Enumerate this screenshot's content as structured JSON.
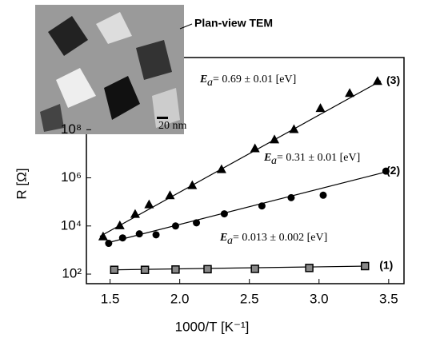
{
  "chart_data": {
    "type": "scatter",
    "inset_label": "Plan-view TEM",
    "inset_scale": "20 nm",
    "xlabel": "1000/T [K⁻¹]",
    "ylabel": "R [Ω]",
    "xlim": [
      1.33,
      3.61
    ],
    "xticks": [
      1.5,
      {
        "value": 2,
        "label": "2.0"
      },
      2.5,
      {
        "value": 3,
        "label": "3.0"
      },
      3.5
    ],
    "ylim": [
      40,
      100000000000
    ],
    "log_y": true,
    "yticks": [
      {
        "value": 100,
        "label": "10²"
      },
      {
        "value": 10000,
        "label": "10⁴"
      },
      {
        "value": 1000000,
        "label": "10⁶"
      },
      {
        "value": 100000000,
        "label": "10⁸"
      }
    ],
    "series": [
      {
        "name": "(3)",
        "marker": "triangle",
        "color": "#000000",
        "x": [
          1.45,
          1.57,
          1.68,
          1.78,
          1.93,
          2.09,
          2.3,
          2.54,
          2.68,
          2.82,
          3.01,
          3.22,
          3.42
        ],
        "values": [
          3700,
          10700,
          32000,
          80000,
          190000,
          500000,
          2300000,
          17000000,
          40000000,
          107000000,
          800000000,
          3400000000,
          10700000000
        ],
        "annotation": "= 0.69 ± 0.01 [eV]"
      },
      {
        "name": "(2)",
        "marker": "circle",
        "color": "#000000",
        "x": [
          1.49,
          1.59,
          1.71,
          1.83,
          1.97,
          2.12,
          2.32,
          2.59,
          2.8,
          3.03,
          3.48
        ],
        "values": [
          1900,
          3200,
          4700,
          4300,
          10000,
          13500,
          32000,
          68000,
          150000,
          190000,
          1900000
        ],
        "annotation": "= 0.31 ± 0.01 [eV]"
      },
      {
        "name": "(1)",
        "marker": "square",
        "color": "#000000",
        "x": [
          1.53,
          1.75,
          1.97,
          2.2,
          2.54,
          2.93,
          3.33
        ],
        "values": [
          150,
          150,
          155,
          160,
          165,
          180,
          215
        ],
        "annotation": "= 0.013 ± 0.002 [eV]"
      }
    ],
    "annotation_symbol": "E"
  }
}
